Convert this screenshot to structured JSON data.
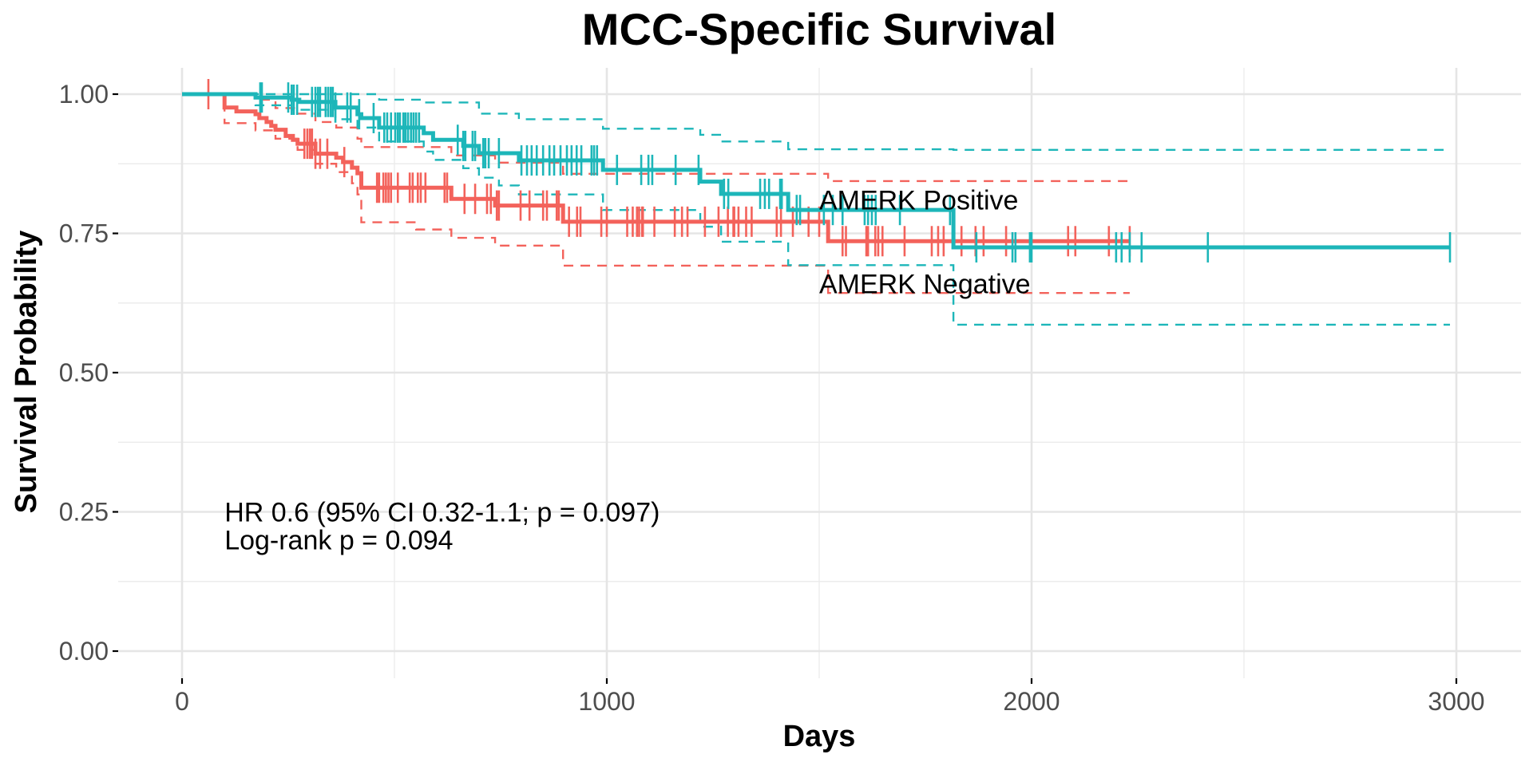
{
  "chart_data": {
    "type": "line",
    "subtype": "kaplan-meier",
    "title": "MCC-Specific Survival",
    "xlabel": "Days",
    "ylabel": "Survival Probability",
    "xlim": [
      0,
      3000
    ],
    "ylim": [
      0,
      1
    ],
    "x_ticks": [
      0,
      1000,
      2000,
      3000
    ],
    "x_tick_labels": [
      "0",
      "1000",
      "2000",
      "3000"
    ],
    "x_minor_ticks": [
      500,
      1500,
      2500
    ],
    "y_ticks": [
      0,
      0.25,
      0.5,
      0.75,
      1.0
    ],
    "y_tick_labels": [
      "0.00",
      "0.25",
      "0.50",
      "0.75",
      "1.00"
    ],
    "y_minor_ticks": [
      0.125,
      0.375,
      0.625,
      0.875
    ],
    "grid": true,
    "legend": "none (direct labels)",
    "colors": {
      "negative": "#F3625B",
      "positive": "#1DB6B9"
    },
    "series": [
      {
        "name": "AMERK Negative",
        "key": "negative",
        "label_text": "AMERK Negative",
        "label_at": [
          1500,
          0.66
        ],
        "steps": [
          [
            0,
            1.0
          ],
          [
            100,
            0.976
          ],
          [
            128,
            0.969
          ],
          [
            173,
            0.964
          ],
          [
            182,
            0.957
          ],
          [
            199,
            0.95
          ],
          [
            210,
            0.943
          ],
          [
            220,
            0.936
          ],
          [
            244,
            0.925
          ],
          [
            261,
            0.918
          ],
          [
            272,
            0.911
          ],
          [
            314,
            0.893
          ],
          [
            363,
            0.886
          ],
          [
            379,
            0.878
          ],
          [
            400,
            0.868
          ],
          [
            413,
            0.858
          ],
          [
            422,
            0.832
          ],
          [
            634,
            0.812
          ],
          [
            737,
            0.8
          ],
          [
            897,
            0.771
          ],
          [
            1521,
            0.736
          ],
          [
            2231,
            0.736
          ]
        ],
        "ci_upper": [
          [
            0,
            1.0
          ],
          [
            100,
            1.0
          ],
          [
            173,
            0.99
          ],
          [
            220,
            0.975
          ],
          [
            272,
            0.965
          ],
          [
            314,
            0.95
          ],
          [
            363,
            0.94
          ],
          [
            413,
            0.92
          ],
          [
            422,
            0.905
          ],
          [
            634,
            0.89
          ],
          [
            737,
            0.877
          ],
          [
            897,
            0.857
          ],
          [
            1521,
            0.844
          ],
          [
            2231,
            0.844
          ]
        ],
        "ci_lower": [
          [
            0,
            1.0
          ],
          [
            100,
            0.948
          ],
          [
            173,
            0.935
          ],
          [
            220,
            0.92
          ],
          [
            272,
            0.9
          ],
          [
            314,
            0.875
          ],
          [
            363,
            0.86
          ],
          [
            400,
            0.84
          ],
          [
            413,
            0.82
          ],
          [
            422,
            0.77
          ],
          [
            551,
            0.757
          ],
          [
            634,
            0.742
          ],
          [
            737,
            0.728
          ],
          [
            897,
            0.692
          ],
          [
            1521,
            0.643
          ],
          [
            2231,
            0.643
          ]
        ],
        "censored": [
          62,
          288,
          295,
          301,
          306,
          314,
          325,
          342,
          382,
          459,
          464,
          474,
          480,
          486,
          492,
          508,
          536,
          543,
          555,
          562,
          573,
          618,
          624,
          665,
          690,
          718,
          727,
          741,
          746,
          797,
          818,
          850,
          859,
          882,
          887,
          911,
          930,
          938,
          987,
          1000,
          1048,
          1061,
          1071,
          1076,
          1083,
          1085,
          1112,
          1160,
          1177,
          1190,
          1231,
          1263,
          1285,
          1298,
          1300,
          1310,
          1328,
          1341,
          1400,
          1410,
          1438,
          1475,
          1500,
          1555,
          1563,
          1611,
          1615,
          1632,
          1639,
          1649,
          1701,
          1765,
          1780,
          1793,
          1835,
          1868,
          1887,
          1940,
          2086,
          2103,
          2182,
          2231
        ]
      },
      {
        "name": "AMERK Positive",
        "key": "positive",
        "label_text": "AMERK Positive",
        "label_at": [
          1500,
          0.81
        ],
        "steps": [
          [
            0,
            1.0
          ],
          [
            173,
            0.994
          ],
          [
            258,
            0.99
          ],
          [
            276,
            0.986
          ],
          [
            361,
            0.976
          ],
          [
            413,
            0.964
          ],
          [
            422,
            0.957
          ],
          [
            464,
            0.94
          ],
          [
            569,
            0.93
          ],
          [
            591,
            0.918
          ],
          [
            662,
            0.907
          ],
          [
            699,
            0.894
          ],
          [
            793,
            0.881
          ],
          [
            991,
            0.864
          ],
          [
            1220,
            0.843
          ],
          [
            1269,
            0.821
          ],
          [
            1427,
            0.792
          ],
          [
            1816,
            0.725
          ],
          [
            2985,
            0.725
          ]
        ],
        "ci_upper": [
          [
            0,
            1.0
          ],
          [
            413,
            1.0
          ],
          [
            464,
            0.99
          ],
          [
            569,
            0.985
          ],
          [
            699,
            0.965
          ],
          [
            793,
            0.955
          ],
          [
            991,
            0.938
          ],
          [
            1220,
            0.927
          ],
          [
            1269,
            0.915
          ],
          [
            1427,
            0.901
          ],
          [
            1816,
            0.9
          ],
          [
            2970,
            0.9
          ]
        ],
        "ci_lower": [
          [
            0,
            1.0
          ],
          [
            173,
            0.98
          ],
          [
            258,
            0.972
          ],
          [
            361,
            0.955
          ],
          [
            413,
            0.94
          ],
          [
            464,
            0.915
          ],
          [
            569,
            0.897
          ],
          [
            591,
            0.882
          ],
          [
            662,
            0.867
          ],
          [
            699,
            0.85
          ],
          [
            746,
            0.836
          ],
          [
            793,
            0.82
          ],
          [
            991,
            0.792
          ],
          [
            1220,
            0.762
          ],
          [
            1269,
            0.735
          ],
          [
            1427,
            0.693
          ],
          [
            1816,
            0.586
          ],
          [
            2985,
            0.586
          ]
        ],
        "censored": [
          184,
          188,
          250,
          258,
          263,
          271,
          306,
          314,
          320,
          325,
          338,
          344,
          350,
          355,
          361,
          389,
          397,
          417,
          451,
          476,
          483,
          492,
          502,
          508,
          513,
          521,
          526,
          532,
          539,
          545,
          551,
          558,
          649,
          662,
          667,
          684,
          690,
          709,
          714,
          722,
          746,
          799,
          812,
          823,
          835,
          850,
          865,
          876,
          891,
          906,
          917,
          929,
          940,
          964,
          970,
          977,
          1024,
          1081,
          1098,
          1107,
          1162,
          1216,
          1276,
          1286,
          1361,
          1372,
          1382,
          1408,
          1412,
          1447,
          1455,
          1511,
          1532,
          1555,
          1607,
          1615,
          1624,
          1633,
          1690,
          1808,
          1870,
          1955,
          1962,
          1996,
          2000,
          2199,
          2212,
          2231,
          2259,
          2415,
          2985
        ]
      }
    ],
    "annotations": [
      {
        "text": "HR 0.6 (95% CI  0.32-1.1; p = 0.097)",
        "at": [
          100,
          0.25
        ]
      },
      {
        "text": "Log-rank p = 0.094",
        "at": [
          100,
          0.2
        ]
      }
    ]
  }
}
